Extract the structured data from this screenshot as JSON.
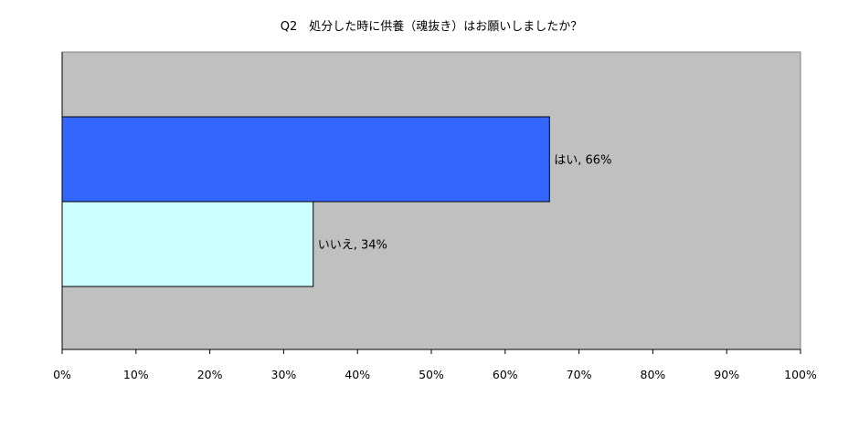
{
  "chart_data": {
    "type": "bar",
    "orientation": "horizontal",
    "title": "Q2　処分した時に供養（魂抜き）はお願いしましたか？",
    "categories": [
      "はい",
      "いいえ"
    ],
    "values": [
      66,
      34
    ],
    "unit": "%",
    "data_labels": [
      "はい, 66%",
      "いいえ, 34%"
    ],
    "xlim": [
      0,
      100
    ],
    "x_ticks": [
      0,
      10,
      20,
      30,
      40,
      50,
      60,
      70,
      80,
      90,
      100
    ],
    "x_tick_labels": [
      "0%",
      "10%",
      "20%",
      "30%",
      "40%",
      "50%",
      "60%",
      "70%",
      "80%",
      "90%",
      "100%"
    ],
    "grid": false,
    "legend": "none",
    "colors": {
      "plot_background": "#c0c0c0",
      "bars": [
        "#3366ff",
        "#ccffff"
      ],
      "bar_outline": "#000000",
      "axis": "#000000"
    }
  }
}
